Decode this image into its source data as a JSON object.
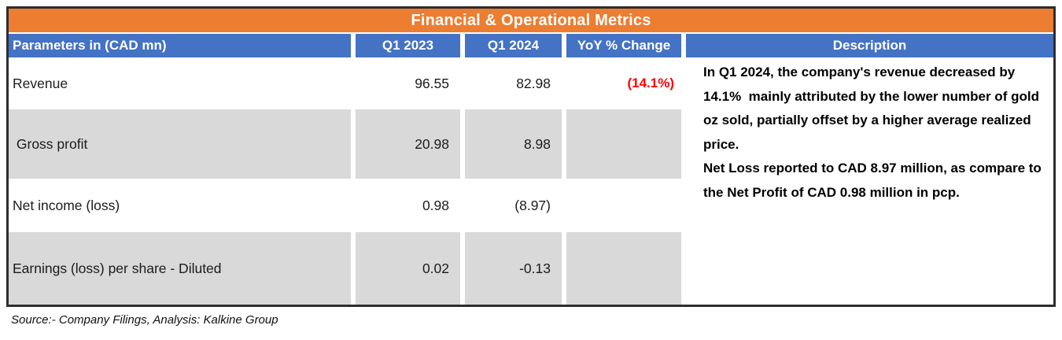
{
  "table": {
    "title": "Financial & Operational Metrics",
    "columns": [
      "Parameters in (CAD mn)",
      "Q1 2023",
      "Q1 2024",
      "YoY % Change",
      "Description"
    ],
    "rows": [
      {
        "label": "Revenue",
        "q1_2023": "96.55",
        "q1_2024": "82.98",
        "yoy_change": "(14.1%)"
      },
      {
        "label": " Gross profit",
        "q1_2023": "20.98",
        "q1_2024": "8.98",
        "yoy_change": ""
      },
      {
        "label": "Net income (loss)",
        "q1_2023": "0.98",
        "q1_2024": "(8.97)",
        "yoy_change": ""
      },
      {
        "label": "Earnings (loss) per share - Diluted",
        "q1_2023": "0.02",
        "q1_2024": "-0.13",
        "yoy_change": ""
      }
    ],
    "description": {
      "p1": "In Q1 2024, the company's revenue decreased by  14.1%  mainly attributed by the lower number of gold oz sold, partially offset by a higher average realized price.",
      "p2": "Net Loss reported to CAD 8.97 million, as compare to the Net Profit of CAD 0.98 million in pcp."
    }
  },
  "footer": {
    "source": "Source:- Company Filings, Analysis: Kalkine Group"
  },
  "colors": {
    "accent_orange": "#ED7D31",
    "header_blue": "#4472C4",
    "row_gray": "#D9D9D9",
    "negative_red": "#FF0000"
  },
  "chart_data": {
    "type": "table",
    "title": "Financial & Operational Metrics",
    "categories": [
      "Revenue",
      "Gross profit",
      "Net income (loss)",
      "Earnings (loss) per share - Diluted"
    ],
    "series": [
      {
        "name": "Q1 2023",
        "values": [
          96.55,
          20.98,
          0.98,
          0.02
        ]
      },
      {
        "name": "Q1 2024",
        "values": [
          82.98,
          8.98,
          -8.97,
          -0.13
        ]
      }
    ],
    "yoy_pct_change": [
      -14.1,
      null,
      null,
      null
    ],
    "units": "CAD mn",
    "source": "Source:- Company Filings, Analysis: Kalkine Group"
  }
}
